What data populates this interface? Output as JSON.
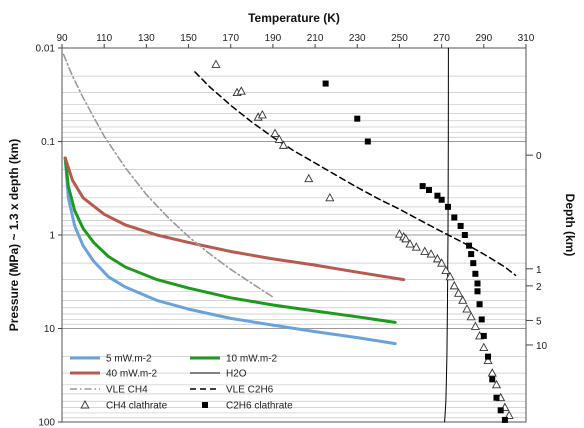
{
  "chart_data": {
    "type": "line",
    "xlabel": "Temperature (K)",
    "ylabel": "Pressure (MPa) ~ 1.3 x depth (km)",
    "y2label": "Depth (km)",
    "xlim": [
      90,
      310
    ],
    "ylim": [
      0.01,
      100
    ],
    "yscale": "log",
    "x_ticks": [
      "90",
      "110",
      "130",
      "150",
      "170",
      "190",
      "210",
      "230",
      "250",
      "270",
      "290",
      "310"
    ],
    "y_ticks": [
      "0.01",
      "0.1",
      "1",
      "10",
      "100"
    ],
    "y2_ticks": [
      "0",
      "1",
      "2",
      "5",
      "10"
    ],
    "y2_tick_pressures": [
      0.14,
      2.3,
      3.5,
      8.2,
      15
    ],
    "grid": "horizontal log grid",
    "legend_position": "bottom-left",
    "series": [
      {
        "name": "5 mW.m-2",
        "color": "#6aa3dc",
        "style": "solid",
        "x": [
          91.5,
          93,
          96,
          100,
          105,
          112,
          120,
          135,
          150,
          170,
          190,
          210,
          230,
          248
        ],
        "y": [
          0.15,
          0.4,
          0.8,
          1.3,
          1.9,
          2.8,
          3.6,
          5.0,
          6.2,
          7.8,
          9.2,
          10.8,
          12.5,
          14.5
        ]
      },
      {
        "name": "10 mW.m-2",
        "color": "#1e9a1e",
        "style": "solid",
        "x": [
          91.5,
          93,
          96,
          100,
          105,
          112,
          120,
          135,
          150,
          170,
          190,
          210,
          230,
          248
        ],
        "y": [
          0.15,
          0.3,
          0.55,
          0.85,
          1.2,
          1.7,
          2.2,
          3.0,
          3.7,
          4.7,
          5.6,
          6.5,
          7.5,
          8.6
        ]
      },
      {
        "name": "40 mW.m-2",
        "color": "#b85a50",
        "style": "solid",
        "x": [
          91.5,
          95,
          100,
          110,
          120,
          135,
          150,
          170,
          190,
          210,
          230,
          252
        ],
        "y": [
          0.15,
          0.26,
          0.4,
          0.6,
          0.78,
          1.0,
          1.2,
          1.5,
          1.8,
          2.1,
          2.5,
          3.0
        ]
      },
      {
        "name": "H2O",
        "color": "#000000",
        "style": "solid",
        "x": [
          273.2,
          273.15,
          273.0,
          272.8,
          272.5,
          272.0,
          271.4
        ],
        "y": [
          0.01,
          0.1,
          1,
          5,
          20,
          60,
          100
        ]
      },
      {
        "name": "VLE CH4",
        "color": "#9a9a9a",
        "style": "dashdot",
        "x": [
          90.7,
          95,
          100,
          110,
          120,
          130,
          140,
          150,
          160,
          170,
          180,
          190
        ],
        "y": [
          0.0117,
          0.02,
          0.034,
          0.088,
          0.19,
          0.37,
          0.64,
          1.04,
          1.59,
          2.33,
          3.29,
          4.6
        ]
      },
      {
        "name": "VLE C2H6",
        "color": "#000000",
        "style": "dashed",
        "x": [
          153,
          160,
          170,
          180,
          190,
          200,
          210,
          220,
          230,
          240,
          250,
          260,
          270,
          280,
          290,
          300,
          305
        ],
        "y": [
          0.018,
          0.026,
          0.041,
          0.062,
          0.09,
          0.126,
          0.17,
          0.23,
          0.31,
          0.41,
          0.53,
          0.7,
          0.92,
          1.2,
          1.6,
          2.2,
          2.7
        ]
      }
    ],
    "scatter_series": [
      {
        "name": "CH4 clathrate",
        "marker": "open-triangle",
        "color": "#333333",
        "x": [
          163,
          173,
          175,
          183,
          185,
          191,
          193,
          195,
          207,
          217,
          250,
          252,
          253,
          255,
          258,
          262,
          265,
          268,
          270,
          272,
          274,
          276,
          278,
          280,
          282,
          284,
          286,
          288,
          290,
          292,
          294,
          296,
          298,
          300,
          302
        ],
        "y": [
          0.015,
          0.03,
          0.029,
          0.055,
          0.052,
          0.082,
          0.095,
          0.11,
          0.25,
          0.4,
          0.98,
          1.05,
          1.1,
          1.25,
          1.35,
          1.5,
          1.6,
          1.8,
          2.0,
          2.4,
          2.8,
          3.5,
          4.2,
          5.0,
          6.2,
          7.5,
          9.5,
          12,
          16,
          22,
          30,
          40,
          55,
          70,
          85
        ]
      },
      {
        "name": "C2H6 clathrate",
        "marker": "filled-square",
        "color": "#000000",
        "x": [
          215,
          230,
          235,
          261,
          264,
          268,
          270,
          273,
          276,
          279,
          281,
          283,
          284,
          285,
          286,
          287,
          287,
          288,
          289,
          290,
          292,
          294,
          296,
          298,
          300
        ],
        "y": [
          0.024,
          0.057,
          0.1,
          0.3,
          0.33,
          0.38,
          0.42,
          0.5,
          0.65,
          0.8,
          1.0,
          1.3,
          1.6,
          2.0,
          2.6,
          3.3,
          4.0,
          5.5,
          8.0,
          12,
          20,
          35,
          55,
          75,
          95
        ]
      }
    ]
  }
}
